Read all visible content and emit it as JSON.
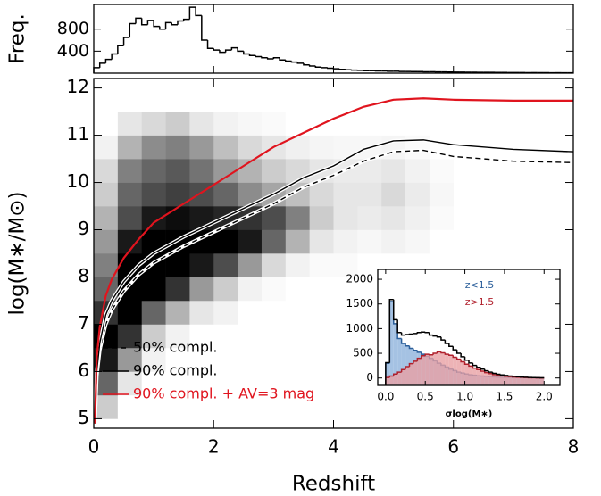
{
  "chart_data": [
    {
      "type": "histogram",
      "ylabel": "Freq.",
      "color": "#000000",
      "bins": [
        0,
        0.1,
        0.2,
        0.3,
        0.4,
        0.5,
        0.6,
        0.7,
        0.8,
        0.9,
        1.0,
        1.1,
        1.2,
        1.3,
        1.4,
        1.5,
        1.6,
        1.7,
        1.8,
        1.9,
        2.0,
        2.1,
        2.2,
        2.3,
        2.4,
        2.5,
        2.6,
        2.7,
        2.8,
        2.9,
        3.0,
        3.1,
        3.2,
        3.3,
        3.4,
        3.5,
        3.6,
        3.7,
        3.8,
        3.9,
        4.0,
        4.1,
        4.2,
        4.3,
        4.4,
        4.5,
        4.6,
        4.7,
        4.8,
        4.9,
        5.0,
        5.1,
        5.2,
        5.3,
        5.4,
        5.5,
        5.6,
        5.7,
        5.8,
        5.9,
        6.0,
        6.1,
        6.2,
        6.3,
        6.4,
        6.5,
        6.6,
        6.7,
        6.8,
        6.9,
        7.0,
        7.1,
        7.2,
        7.3,
        7.4,
        7.5,
        7.6,
        7.7,
        7.8,
        7.9,
        8.0
      ],
      "values": [
        100,
        180,
        250,
        350,
        500,
        650,
        900,
        1000,
        880,
        960,
        850,
        800,
        920,
        880,
        950,
        980,
        1200,
        1050,
        600,
        450,
        420,
        380,
        420,
        460,
        400,
        350,
        320,
        300,
        280,
        260,
        280,
        240,
        220,
        200,
        180,
        150,
        130,
        110,
        100,
        90,
        80,
        70,
        60,
        55,
        50,
        45,
        45,
        40,
        40,
        35,
        35,
        30,
        30,
        28,
        28,
        25,
        25,
        22,
        22,
        20,
        18,
        18,
        16,
        16,
        15,
        14,
        14,
        12,
        12,
        11,
        10,
        10,
        9,
        9,
        8,
        8,
        7,
        7,
        6,
        6
      ],
      "xlim": [
        0,
        8
      ],
      "ylim": [
        0,
        1250
      ],
      "yticks": [
        400,
        800
      ]
    },
    {
      "type": "heatmap",
      "xlabel": "Redshift",
      "ylabel": "log(M∗/M⊙)",
      "xbins": [
        0,
        0.4,
        0.8,
        1.2,
        1.6,
        2.0,
        2.4,
        2.8,
        3.2,
        3.6,
        4.0,
        4.4,
        4.8,
        5.2,
        5.6,
        6.0
      ],
      "ybins": [
        5,
        5.5,
        6,
        6.5,
        7,
        7.5,
        8,
        8.5,
        9,
        9.5,
        10,
        10.5,
        11,
        11.5,
        12
      ],
      "z": [
        [
          0.2,
          0,
          0,
          0,
          0,
          0,
          0,
          0,
          0,
          0,
          0,
          0,
          0,
          0,
          0
        ],
        [
          0.6,
          0.1,
          0,
          0,
          0,
          0,
          0,
          0,
          0,
          0,
          0,
          0,
          0,
          0,
          0
        ],
        [
          0.9,
          0.4,
          0.05,
          0,
          0,
          0,
          0,
          0,
          0,
          0,
          0,
          0,
          0,
          0,
          0
        ],
        [
          1,
          0.8,
          0.2,
          0.05,
          0,
          0,
          0,
          0,
          0,
          0,
          0,
          0,
          0,
          0,
          0
        ],
        [
          0.8,
          1,
          0.6,
          0.3,
          0.1,
          0.05,
          0,
          0,
          0,
          0,
          0,
          0,
          0,
          0,
          0
        ],
        [
          0.6,
          1,
          1,
          0.8,
          0.4,
          0.2,
          0.05,
          0.02,
          0,
          0,
          0,
          0,
          0,
          0,
          0
        ],
        [
          0.5,
          1,
          1,
          1,
          0.9,
          0.7,
          0.4,
          0.15,
          0.05,
          0.02,
          0.02,
          0,
          0,
          0,
          0
        ],
        [
          0.4,
          0.9,
          1,
          1,
          1,
          1,
          0.9,
          0.6,
          0.3,
          0.1,
          0.05,
          0.03,
          0.05,
          0.03,
          0
        ],
        [
          0.3,
          0.7,
          0.9,
          0.95,
          0.9,
          0.85,
          0.8,
          0.7,
          0.5,
          0.2,
          0.1,
          0.08,
          0.1,
          0.06,
          0.02
        ],
        [
          0.2,
          0.6,
          0.7,
          0.75,
          0.7,
          0.6,
          0.45,
          0.35,
          0.25,
          0.15,
          0.1,
          0.1,
          0.15,
          0.08,
          0.03
        ],
        [
          0.15,
          0.5,
          0.6,
          0.65,
          0.55,
          0.4,
          0.3,
          0.2,
          0.15,
          0.1,
          0.08,
          0.08,
          0.1,
          0.05,
          0.02
        ],
        [
          0.05,
          0.3,
          0.45,
          0.5,
          0.4,
          0.25,
          0.15,
          0.1,
          0.06,
          0.04,
          0.03,
          0.03,
          0.04,
          0.02,
          0
        ],
        [
          0,
          0.1,
          0.15,
          0.2,
          0.1,
          0.05,
          0.03,
          0.02,
          0,
          0,
          0,
          0,
          0,
          0,
          0
        ],
        [
          0,
          0,
          0,
          0,
          0,
          0,
          0,
          0,
          0,
          0,
          0,
          0,
          0,
          0,
          0
        ]
      ],
      "x": [
        0.02,
        0.05,
        0.1,
        0.2,
        0.3,
        0.5,
        0.75,
        1,
        1.5,
        2,
        2.5,
        3,
        3.5,
        4,
        4.5,
        5,
        5.5,
        6,
        7,
        8
      ],
      "series": [
        {
          "name": "50% compl.",
          "color": "#000000",
          "dash": true,
          "outline": "#ffffff",
          "values": [
            4.9,
            5.9,
            6.45,
            7.0,
            7.3,
            7.7,
            8.05,
            8.3,
            8.65,
            8.95,
            9.25,
            9.55,
            9.9,
            10.15,
            10.45,
            10.65,
            10.68,
            10.55,
            10.45,
            10.42
          ]
        },
        {
          "name": "90% compl.",
          "color": "#000000",
          "dash": false,
          "outline": "#ffffff",
          "values": [
            4.9,
            6.0,
            6.6,
            7.2,
            7.5,
            7.9,
            8.25,
            8.5,
            8.85,
            9.15,
            9.45,
            9.75,
            10.1,
            10.35,
            10.7,
            10.88,
            10.9,
            10.8,
            10.7,
            10.65
          ]
        },
        {
          "name": "90% compl. + AV=3 mag",
          "color": "#e0141e",
          "dash": false,
          "values": [
            4.9,
            6.3,
            6.95,
            7.6,
            7.95,
            8.4,
            8.8,
            9.15,
            9.55,
            9.95,
            10.35,
            10.75,
            11.05,
            11.35,
            11.6,
            11.75,
            11.78,
            11.75,
            11.73,
            11.73
          ]
        }
      ],
      "legend": "lower left",
      "xlim": [
        0,
        8
      ],
      "ylim": [
        4.8,
        12.2
      ],
      "xticks": [
        0,
        2,
        4,
        6,
        8
      ],
      "yticks": [
        5,
        6,
        7,
        8,
        9,
        10,
        11,
        12
      ]
    },
    {
      "type": "histogram",
      "xlabel": "σlog(M∗)",
      "bins": [
        0,
        0.05,
        0.1,
        0.15,
        0.2,
        0.25,
        0.3,
        0.35,
        0.4,
        0.45,
        0.5,
        0.55,
        0.6,
        0.65,
        0.7,
        0.75,
        0.8,
        0.85,
        0.9,
        0.95,
        1.0,
        1.05,
        1.1,
        1.15,
        1.2,
        1.25,
        1.3,
        1.35,
        1.4,
        1.45,
        1.5,
        1.55,
        1.6,
        1.65,
        1.7,
        1.75,
        1.8,
        1.85,
        1.9,
        1.95,
        2.0
      ],
      "series": [
        {
          "name": "z<1.5",
          "color": "#2a5e9a",
          "fill": "#8fb3dc",
          "values": [
            300,
            1550,
            1100,
            800,
            700,
            650,
            600,
            560,
            520,
            480,
            440,
            400,
            350,
            300,
            260,
            220,
            180,
            150,
            120,
            100,
            80,
            65,
            55,
            45,
            40,
            35,
            30,
            25,
            20,
            18,
            15,
            12,
            10,
            8,
            6,
            5,
            4,
            3,
            2,
            1
          ]
        },
        {
          "name": "z>1.5",
          "color": "#b0202c",
          "fill": "#e8a0a4",
          "values": [
            10,
            40,
            80,
            120,
            170,
            230,
            290,
            340,
            400,
            450,
            480,
            470,
            500,
            530,
            510,
            480,
            460,
            420,
            380,
            330,
            280,
            240,
            200,
            170,
            140,
            110,
            90,
            70,
            55,
            45,
            35,
            28,
            22,
            18,
            14,
            10,
            7,
            5,
            3,
            2
          ]
        },
        {
          "color": "#000000",
          "values": [
            310,
            1590,
            1180,
            920,
            870,
            880,
            890,
            900,
            920,
            930,
            920,
            870,
            850,
            830,
            770,
            700,
            640,
            570,
            500,
            430,
            360,
            305,
            255,
            215,
            180,
            145,
            120,
            95,
            75,
            63,
            50,
            40,
            32,
            26,
            20,
            15,
            11,
            8,
            5,
            3
          ]
        }
      ],
      "xlim": [
        -0.1,
        2.2
      ],
      "ylim": [
        -150,
        2200
      ],
      "xticks": [
        {
          "value": 0,
          "label": "0.0"
        },
        {
          "value": 0.5,
          "label": "0.5"
        },
        {
          "value": 1,
          "label": "1.0"
        },
        {
          "value": 1.5,
          "label": "1.5"
        },
        {
          "value": 2,
          "label": "2.0"
        }
      ],
      "yticks": [
        0,
        500,
        1000,
        1500,
        2000
      ]
    }
  ]
}
